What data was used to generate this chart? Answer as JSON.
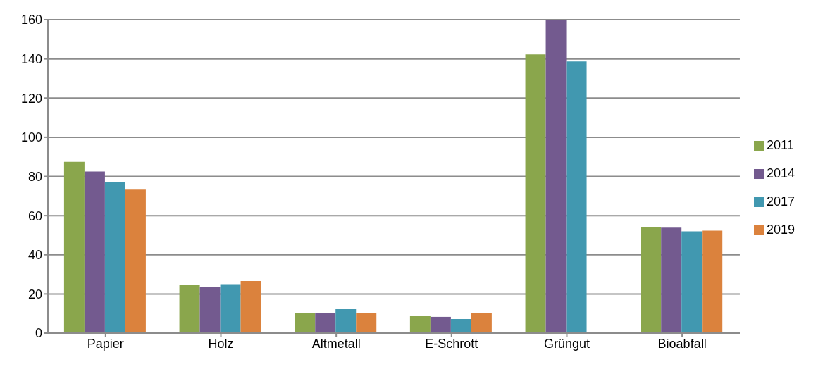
{
  "chart_data": {
    "type": "bar",
    "categories": [
      "Papier",
      "Holz",
      "Altmetall",
      "E-Schrott",
      "Grüngut",
      "Bioabfall"
    ],
    "series": [
      {
        "name": "2011",
        "color": "#8aa64c",
        "values": [
          87.5,
          24.6,
          10.3,
          8.9,
          142.3,
          54.3
        ]
      },
      {
        "name": "2014",
        "color": "#735a8f",
        "values": [
          82.5,
          23.4,
          10.4,
          8.3,
          159.9,
          53.8
        ]
      },
      {
        "name": "2017",
        "color": "#4198b0",
        "values": [
          77,
          25,
          12.2,
          7.2,
          138.7,
          52
        ]
      },
      {
        "name": "2019",
        "color": "#db823d",
        "values": [
          73.3,
          26.6,
          10.1,
          10.2,
          0,
          52.3
        ]
      }
    ],
    "ylim": [
      0,
      160
    ],
    "yticks": [
      0,
      20,
      40,
      60,
      80,
      100,
      120,
      140,
      160
    ],
    "grid": "y",
    "legend": "right"
  }
}
